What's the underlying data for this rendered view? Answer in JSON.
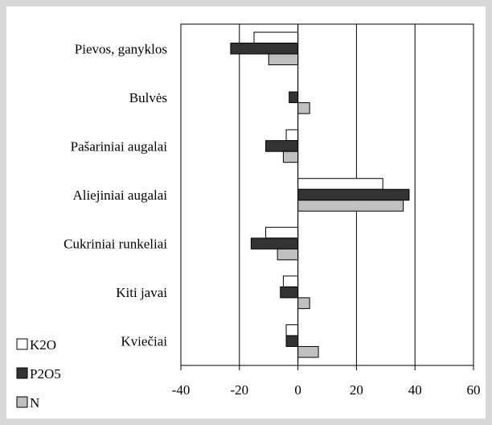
{
  "chart_data": {
    "type": "bar",
    "orientation": "horizontal",
    "categories": [
      "Pievos, ganyklos",
      "Bulvės",
      "Pašariniai augalai",
      "Aliejiniai augalai",
      "Cukriniai runkeliai",
      "Kiti javai",
      "Kviečiai"
    ],
    "series": [
      {
        "name": "K2O",
        "color": "#ffffff",
        "values": [
          -15,
          0,
          -4,
          29,
          -11,
          -5,
          -4
        ]
      },
      {
        "name": "P2O5",
        "color": "#333333",
        "values": [
          -23,
          -3,
          -11,
          38,
          -16,
          -6,
          -4
        ]
      },
      {
        "name": "N",
        "color": "#c0c0c0",
        "values": [
          -10,
          4,
          -5,
          36,
          -7,
          4,
          7
        ]
      }
    ],
    "xlim": [
      -40,
      60
    ],
    "xticks": [
      -40,
      -20,
      0,
      20,
      40,
      60
    ],
    "grid": "vertical",
    "legend": "bottom-left"
  }
}
